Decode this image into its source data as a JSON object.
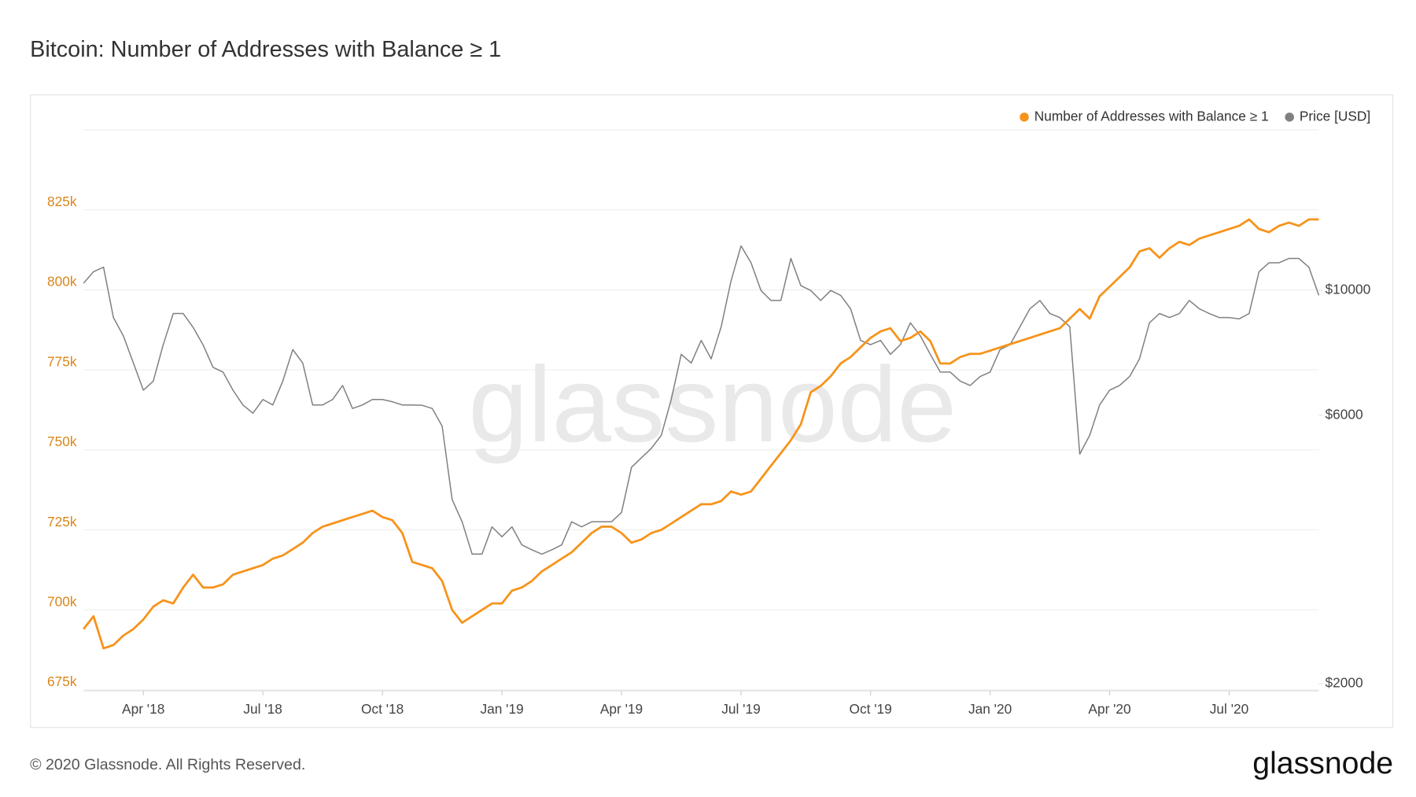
{
  "chart_data": {
    "type": "line",
    "title": "Bitcoin: Number of Addresses with Balance ≥ 1",
    "watermark": "glassnode",
    "footer": "© 2020 Glassnode. All Rights Reserved.",
    "brand": "glassnode",
    "legend": "top-right",
    "grid": true,
    "y2_log": true,
    "categories": [
      null,
      null,
      null,
      null,
      null,
      null,
      "Apr '18",
      null,
      null,
      null,
      null,
      null,
      null,
      null,
      null,
      null,
      null,
      null,
      "Jul '18",
      null,
      null,
      null,
      null,
      null,
      null,
      null,
      null,
      null,
      null,
      null,
      "Oct '18",
      null,
      null,
      null,
      null,
      null,
      null,
      null,
      null,
      null,
      null,
      null,
      "Jan '19",
      null,
      null,
      null,
      null,
      null,
      null,
      null,
      null,
      null,
      null,
      null,
      "Apr '19",
      null,
      null,
      null,
      null,
      null,
      null,
      null,
      null,
      null,
      null,
      null,
      "Jul '19",
      null,
      null,
      null,
      null,
      null,
      null,
      null,
      null,
      null,
      null,
      null,
      null,
      "Oct '19",
      null,
      null,
      null,
      null,
      null,
      null,
      null,
      null,
      null,
      null,
      null,
      "Jan '20",
      null,
      null,
      null,
      null,
      null,
      null,
      null,
      null,
      null,
      null,
      null,
      "Apr '20",
      null,
      null,
      null,
      null,
      null,
      null,
      null,
      null,
      null,
      null,
      null,
      "Jul '20",
      null,
      null,
      null,
      null,
      null,
      null,
      null,
      null,
      null
    ],
    "ylim": [
      675000,
      850000
    ],
    "yticks": [
      {
        "value": 675000,
        "label": "675k"
      },
      {
        "value": 700000,
        "label": "700k"
      },
      {
        "value": 725000,
        "label": "725k"
      },
      {
        "value": 750000,
        "label": "750k"
      },
      {
        "value": 775000,
        "label": "775k"
      },
      {
        "value": 800000,
        "label": "800k"
      },
      {
        "value": 825000,
        "label": "825k"
      }
    ],
    "y2lim": [
      1950,
      19300
    ],
    "y2ticks": [
      {
        "value": 2000,
        "label": "$2000"
      },
      {
        "value": 6000,
        "label": "$6000"
      },
      {
        "value": 10000,
        "label": "$10000"
      }
    ],
    "series": [
      {
        "name": "Number of Addresses with Balance ≥ 1",
        "color": "#f7931a",
        "values": [
          694000,
          698000,
          688000,
          689000,
          692000,
          694000,
          697000,
          701000,
          703000,
          702000,
          707000,
          711000,
          707000,
          707000,
          708000,
          711000,
          712000,
          713000,
          714000,
          716000,
          717000,
          719000,
          721000,
          724000,
          726000,
          727000,
          728000,
          729000,
          730000,
          731000,
          729000,
          728000,
          724000,
          715000,
          714000,
          713000,
          709000,
          700000,
          696000,
          698000,
          700000,
          702000,
          702000,
          706000,
          707000,
          709000,
          712000,
          714000,
          716000,
          718000,
          721000,
          724000,
          726000,
          726000,
          724000,
          721000,
          722000,
          724000,
          725000,
          727000,
          729000,
          731000,
          733000,
          733000,
          734000,
          737000,
          736000,
          737000,
          741000,
          745000,
          749000,
          753000,
          758000,
          768000,
          770000,
          773000,
          777000,
          779000,
          782000,
          785000,
          787000,
          788000,
          784000,
          785000,
          787000,
          784000,
          777000,
          777000,
          779000,
          780000,
          780000,
          781000,
          782000,
          783000,
          784000,
          785000,
          786000,
          787000,
          788000,
          791000,
          794000,
          791000,
          798000,
          801000,
          804000,
          807000,
          812000,
          813000,
          810000,
          813000,
          815000,
          814000,
          816000,
          817000,
          818000,
          819000,
          820000,
          822000,
          819000,
          818000,
          820000,
          821000,
          820000,
          822000,
          822000
        ]
      },
      {
        "name": "Price [USD]",
        "color": "#808080",
        "axis": "y2",
        "values": [
          10300,
          10800,
          11000,
          8950,
          8300,
          7430,
          6650,
          6900,
          8010,
          9100,
          9100,
          8600,
          8000,
          7300,
          7160,
          6650,
          6260,
          6050,
          6400,
          6260,
          6900,
          7850,
          7430,
          6260,
          6260,
          6400,
          6780,
          6170,
          6260,
          6400,
          6400,
          6340,
          6260,
          6260,
          6250,
          6170,
          5740,
          4250,
          3880,
          3400,
          3400,
          3800,
          3650,
          3800,
          3530,
          3460,
          3400,
          3460,
          3530,
          3880,
          3800,
          3880,
          3880,
          3880,
          4030,
          4850,
          5040,
          5240,
          5530,
          6410,
          7700,
          7430,
          8150,
          7560,
          8620,
          10400,
          12000,
          11200,
          10000,
          9600,
          9600,
          11400,
          10200,
          10000,
          9600,
          10000,
          9800,
          9280,
          8150,
          8010,
          8150,
          7700,
          8010,
          8760,
          8300,
          7700,
          7160,
          7160,
          6900,
          6780,
          7030,
          7160,
          7850,
          8010,
          8620,
          9280,
          9600,
          9100,
          8950,
          8620,
          5120,
          5530,
          6260,
          6650,
          6780,
          7030,
          7560,
          8760,
          9100,
          8950,
          9100,
          9600,
          9280,
          9100,
          8950,
          8950,
          8900,
          9100,
          10800,
          11200,
          11200,
          11400,
          11400,
          11000,
          9800
        ]
      }
    ]
  }
}
